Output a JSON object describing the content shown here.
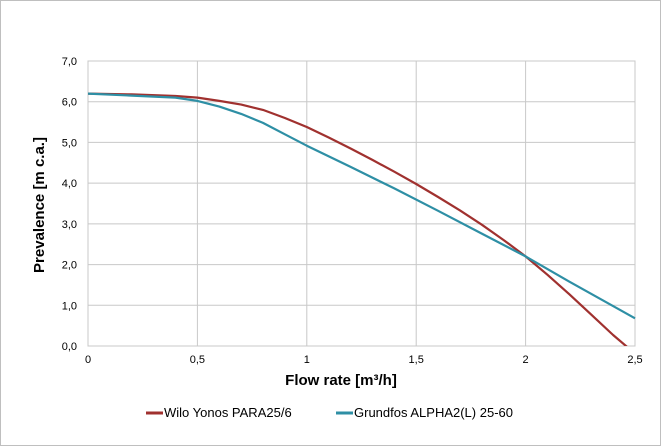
{
  "chart_data": {
    "type": "line",
    "title": "",
    "xlabel": "Flow rate [m³/h]",
    "ylabel": "Prevalence  [m  c.a.]",
    "xlim": [
      0,
      2.5
    ],
    "ylim": [
      0,
      7
    ],
    "x_ticks": [
      "0",
      "0,5",
      "1",
      "1,5",
      "2",
      "2,5"
    ],
    "y_ticks": [
      "0,0",
      "1,0",
      "2,0",
      "3,0",
      "4,0",
      "5,0",
      "6,0",
      "7,0"
    ],
    "grid": true,
    "legend_position": "bottom",
    "series": [
      {
        "name": "Wilo Yonos PARA25/6",
        "color": "#a0312f",
        "x": [
          0,
          0.2,
          0.4,
          0.5,
          0.6,
          0.7,
          0.8,
          0.9,
          1.0,
          1.1,
          1.2,
          1.3,
          1.4,
          1.5,
          1.6,
          1.7,
          1.8,
          1.9,
          2.0,
          2.1,
          2.2,
          2.3,
          2.4,
          2.47
        ],
        "y": [
          6.2,
          6.18,
          6.14,
          6.1,
          6.02,
          5.93,
          5.8,
          5.6,
          5.38,
          5.12,
          4.85,
          4.57,
          4.28,
          3.98,
          3.66,
          3.33,
          2.98,
          2.6,
          2.2,
          1.75,
          1.27,
          0.77,
          0.27,
          -0.05
        ]
      },
      {
        "name": "Grundfos ALPHA2(L) 25-60",
        "color": "#2e8fa5",
        "x": [
          0,
          0.2,
          0.4,
          0.5,
          0.6,
          0.7,
          0.8,
          0.9,
          1.0,
          1.2,
          1.4,
          1.6,
          1.8,
          2.0,
          2.2,
          2.4,
          2.5
        ],
        "y": [
          6.2,
          6.15,
          6.1,
          6.02,
          5.88,
          5.7,
          5.48,
          5.2,
          4.92,
          4.4,
          3.87,
          3.32,
          2.76,
          2.2,
          1.58,
          0.98,
          0.68
        ]
      }
    ]
  }
}
